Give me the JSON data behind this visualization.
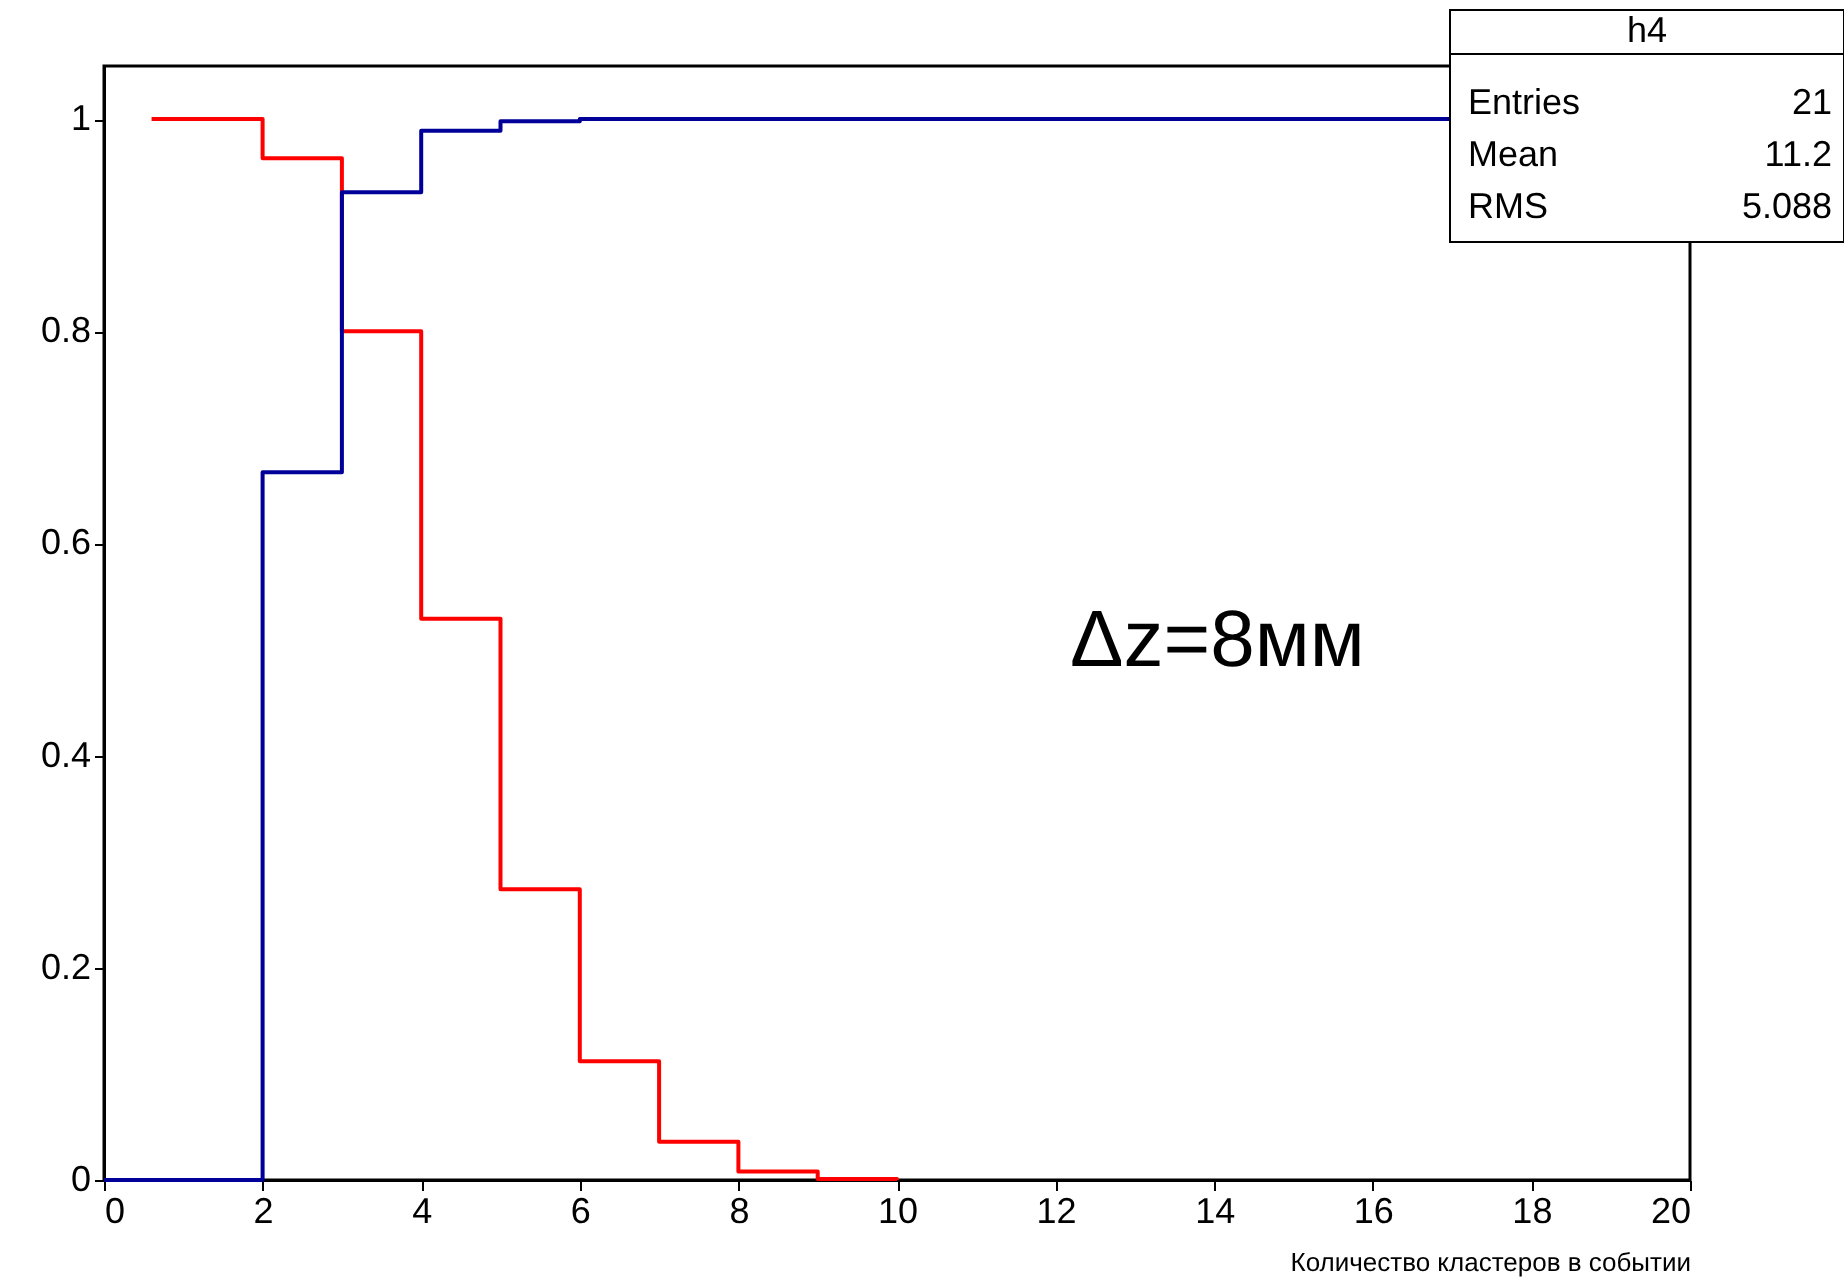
{
  "chart_data": {
    "type": "step",
    "xlabel": "Количество кластеров в событии",
    "xlim": [
      0,
      20
    ],
    "xticks": [
      0,
      2,
      4,
      6,
      8,
      10,
      12,
      14,
      16,
      18,
      20
    ],
    "ylim": [
      0,
      1.05
    ],
    "yticks": [
      0,
      0.2,
      0.4,
      0.6,
      0.8,
      1
    ],
    "annotations": [
      "Δz=8мм",
      "h4",
      "Entries",
      "21",
      "Mean",
      "11.2",
      "RMS",
      "5.088"
    ],
    "series": [
      {
        "color": "#ff0000",
        "x": [
          0.6,
          2,
          3,
          4,
          5,
          6,
          7,
          8,
          9,
          10
        ],
        "values": [
          1,
          0.963,
          0.8,
          0.529,
          0.274,
          0.112,
          0.036,
          0.008,
          0.001,
          0
        ]
      },
      {
        "color": "#000099",
        "x": [
          0,
          2,
          3,
          4,
          5,
          6,
          17
        ],
        "values": [
          0,
          0.667,
          0.931,
          0.989,
          0.998,
          1,
          1
        ]
      }
    ]
  }
}
